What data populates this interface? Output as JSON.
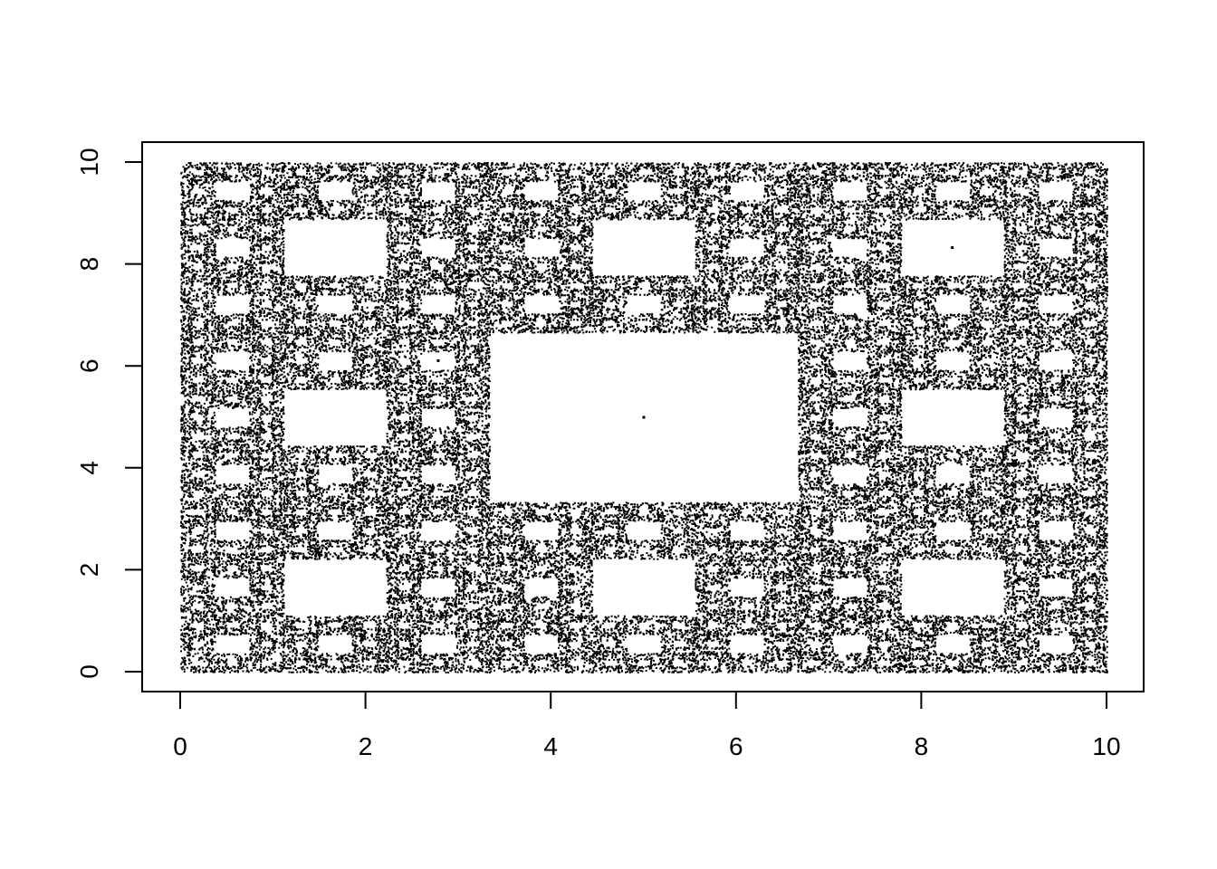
{
  "chart_data": {
    "type": "scatter",
    "title": "",
    "xlabel": "",
    "ylabel": "",
    "xlim": [
      0,
      10
    ],
    "ylim": [
      0,
      10
    ],
    "x_ticks": [
      0,
      2,
      4,
      6,
      8,
      10
    ],
    "y_ticks": [
      0,
      2,
      4,
      6,
      8,
      10
    ],
    "x_tick_labels": [
      "0",
      "2",
      "4",
      "6",
      "8",
      "10"
    ],
    "y_tick_labels": [
      "0",
      "2",
      "4",
      "6",
      "8",
      "10"
    ],
    "grid": false,
    "legend": "none",
    "point_color": "#000000",
    "pattern": "Sierpinski carpet (chaos game, 8 affine maps, ratio 1/3) on [0,10] x [0,10]",
    "point_count": 60000,
    "outlier_points": [
      {
        "x": 5.0,
        "y": 5.0
      },
      {
        "x": 8.33,
        "y": 8.33
      },
      {
        "x": 2.78,
        "y": 6.11
      }
    ]
  },
  "colors": {
    "background": "#ffffff",
    "foreground": "#000000"
  }
}
